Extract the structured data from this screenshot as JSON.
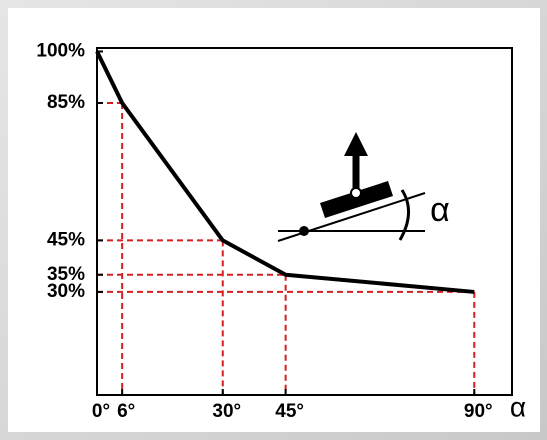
{
  "chart_data": {
    "type": "line",
    "x": [
      0,
      6,
      30,
      45,
      90
    ],
    "values": [
      100,
      85,
      45,
      35,
      30
    ],
    "color": "#000000",
    "guide_color": "#d42020",
    "x_label": "α",
    "inset_label": "α",
    "xlim": [
      0,
      99
    ],
    "ylim": [
      0,
      101
    ],
    "xticks": [
      {
        "value": 0,
        "label": "0°"
      },
      {
        "value": 6,
        "label": "6°"
      },
      {
        "value": 30,
        "label": "30°"
      },
      {
        "value": 45,
        "label": "45°"
      },
      {
        "value": 90,
        "label": "90°"
      }
    ],
    "yticks": [
      {
        "value": 100,
        "label": "100%"
      },
      {
        "value": 85,
        "label": "85%"
      },
      {
        "value": 45,
        "label": "45%"
      },
      {
        "value": 35,
        "label": "35%"
      },
      {
        "value": 30,
        "label": "30%"
      }
    ]
  }
}
